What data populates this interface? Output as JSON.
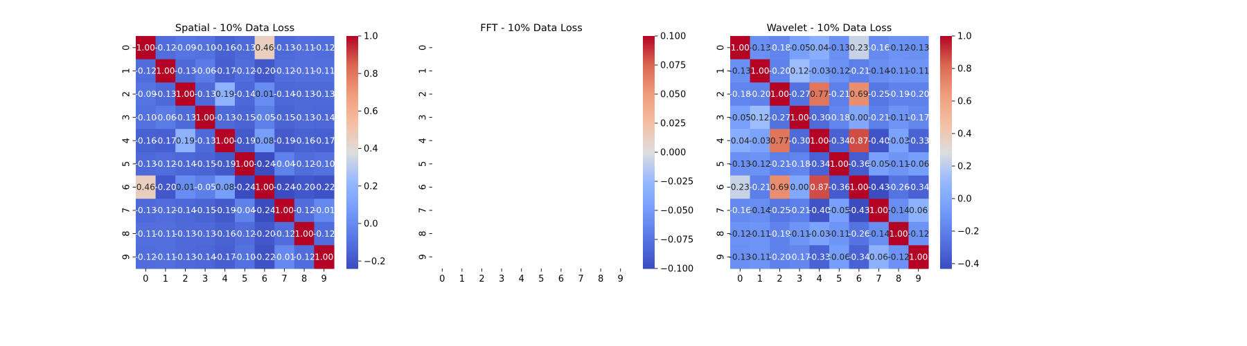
{
  "chart_data": [
    {
      "type": "heatmap",
      "title": "Spatial - 10% Data Loss",
      "x_labels": [
        "0",
        "1",
        "2",
        "3",
        "4",
        "5",
        "6",
        "7",
        "8",
        "9"
      ],
      "y_labels": [
        "0",
        "1",
        "2",
        "3",
        "4",
        "5",
        "6",
        "7",
        "8",
        "9"
      ],
      "vmin": -0.24,
      "vmax": 1.0,
      "colorbar_ticks": [
        -0.2,
        0.0,
        0.2,
        0.4,
        0.6,
        0.8,
        1.0
      ],
      "colorbar_format": 1,
      "colormap": "coolwarm",
      "annotate": true,
      "matrix": [
        [
          1.0,
          -0.12,
          -0.09,
          -0.1,
          -0.16,
          -0.13,
          0.46,
          -0.13,
          -0.11,
          -0.12
        ],
        [
          -0.12,
          1.0,
          -0.13,
          -0.06,
          -0.17,
          -0.12,
          -0.2,
          -0.12,
          -0.11,
          -0.11
        ],
        [
          -0.09,
          -0.13,
          1.0,
          -0.13,
          0.19,
          -0.14,
          0.01,
          -0.14,
          -0.13,
          -0.13
        ],
        [
          -0.1,
          -0.06,
          -0.13,
          1.0,
          -0.13,
          -0.15,
          -0.05,
          -0.15,
          -0.13,
          -0.14
        ],
        [
          -0.16,
          -0.17,
          0.19,
          -0.13,
          1.0,
          -0.19,
          0.08,
          -0.19,
          -0.16,
          -0.17
        ],
        [
          -0.13,
          -0.12,
          -0.14,
          -0.15,
          -0.19,
          1.0,
          -0.24,
          -0.04,
          -0.12,
          -0.1
        ],
        [
          0.46,
          -0.2,
          0.01,
          -0.05,
          0.08,
          -0.24,
          1.0,
          -0.24,
          -0.2,
          -0.22
        ],
        [
          -0.13,
          -0.12,
          -0.14,
          -0.15,
          -0.19,
          -0.04,
          -0.24,
          1.0,
          -0.12,
          -0.01
        ],
        [
          -0.11,
          -0.11,
          -0.13,
          -0.13,
          -0.16,
          -0.12,
          -0.2,
          -0.12,
          1.0,
          -0.12
        ],
        [
          -0.12,
          -0.11,
          -0.13,
          -0.14,
          -0.17,
          -0.1,
          -0.22,
          -0.01,
          -0.12,
          1.0
        ]
      ]
    },
    {
      "type": "heatmap",
      "title": "FFT - 10% Data Loss",
      "x_labels": [
        "0",
        "1",
        "2",
        "3",
        "4",
        "5",
        "6",
        "7",
        "8",
        "9"
      ],
      "y_labels": [
        "0",
        "1",
        "2",
        "3",
        "4",
        "5",
        "6",
        "7",
        "8",
        "9"
      ],
      "vmin": -0.1,
      "vmax": 0.1,
      "colorbar_ticks": [
        -0.1,
        -0.075,
        -0.05,
        -0.025,
        0.0,
        0.025,
        0.05,
        0.075,
        0.1
      ],
      "colorbar_format": 3,
      "colormap": "coolwarm",
      "annotate": false,
      "matrix": null
    },
    {
      "type": "heatmap",
      "title": "Wavelet - 10% Data Loss",
      "x_labels": [
        "0",
        "1",
        "2",
        "3",
        "4",
        "5",
        "6",
        "7",
        "8",
        "9"
      ],
      "y_labels": [
        "0",
        "1",
        "2",
        "3",
        "4",
        "5",
        "6",
        "7",
        "8",
        "9"
      ],
      "vmin": -0.43,
      "vmax": 1.0,
      "colorbar_ticks": [
        -0.4,
        -0.2,
        0.0,
        0.2,
        0.4,
        0.6,
        0.8,
        1.0
      ],
      "colorbar_format": 1,
      "colormap": "coolwarm",
      "annotate": true,
      "matrix": [
        [
          1.0,
          -0.13,
          -0.18,
          -0.05,
          0.04,
          -0.13,
          0.23,
          -0.16,
          -0.12,
          -0.13
        ],
        [
          -0.13,
          1.0,
          -0.2,
          0.12,
          -0.03,
          -0.12,
          -0.21,
          -0.14,
          -0.11,
          -0.11
        ],
        [
          -0.18,
          -0.2,
          1.0,
          -0.27,
          0.77,
          -0.21,
          0.69,
          -0.25,
          -0.19,
          -0.2
        ],
        [
          -0.05,
          0.12,
          -0.27,
          1.0,
          -0.3,
          -0.18,
          0.0,
          -0.21,
          -0.11,
          -0.17
        ],
        [
          0.04,
          -0.03,
          0.77,
          -0.3,
          1.0,
          -0.34,
          0.87,
          -0.4,
          -0.03,
          -0.33
        ],
        [
          -0.13,
          -0.12,
          -0.21,
          -0.18,
          -0.34,
          1.0,
          -0.36,
          -0.05,
          -0.11,
          -0.06
        ],
        [
          0.23,
          -0.21,
          0.69,
          0.0,
          0.87,
          -0.36,
          1.0,
          -0.43,
          -0.26,
          -0.34
        ],
        [
          -0.16,
          -0.14,
          -0.25,
          -0.21,
          -0.4,
          -0.05,
          -0.43,
          1.0,
          -0.14,
          0.06
        ],
        [
          -0.12,
          -0.11,
          -0.19,
          -0.11,
          -0.03,
          -0.11,
          -0.26,
          -0.14,
          1.0,
          -0.12
        ],
        [
          -0.13,
          -0.11,
          -0.2,
          -0.17,
          -0.33,
          -0.06,
          -0.34,
          0.06,
          -0.12,
          1.0
        ]
      ]
    }
  ]
}
